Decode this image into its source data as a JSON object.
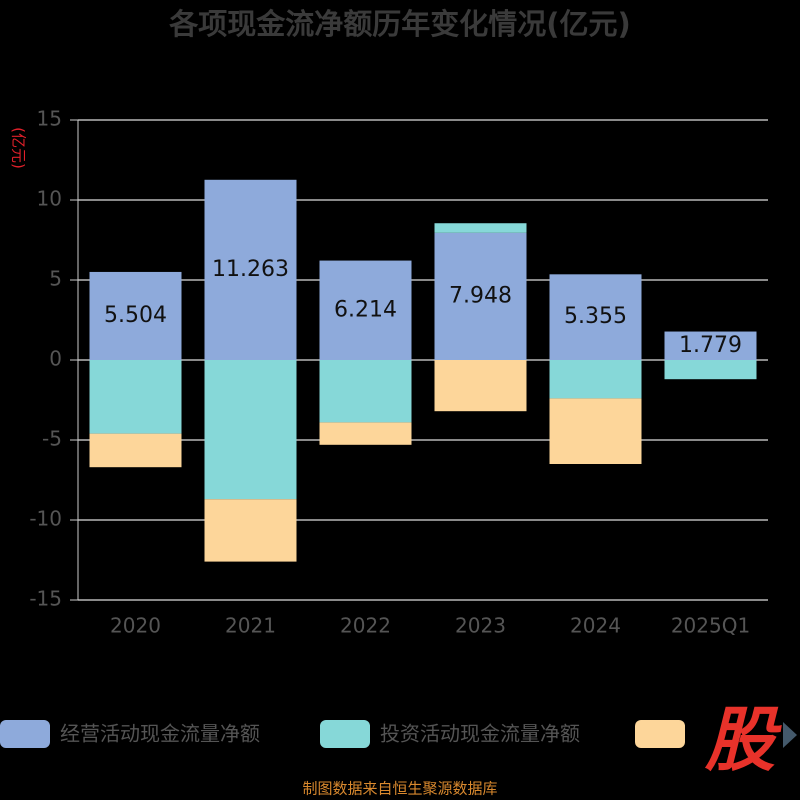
{
  "chart_data": {
    "type": "bar",
    "stacked": true,
    "title": "各项现金流净额历年变化情况(亿元)",
    "y_label": "(亿元)",
    "categories": [
      "2020",
      "2021",
      "2022",
      "2023",
      "2024",
      "2025Q1"
    ],
    "series": [
      {
        "name": "经营活动现金流量净额",
        "color": "#8eaadb",
        "values": [
          5.504,
          11.263,
          6.214,
          7.948,
          5.355,
          1.779
        ],
        "show_labels": true
      },
      {
        "name": "投资活动现金流量净额",
        "color": "#86d8d8",
        "values": [
          -4.6,
          -8.7,
          -3.9,
          0.6,
          -2.4,
          -1.2
        ]
      },
      {
        "color": "#fdd69a",
        "values": [
          -2.1,
          -3.9,
          -1.4,
          -3.2,
          -4.1,
          null
        ]
      }
    ],
    "ylim": [
      -15,
      15
    ],
    "yticks": [
      -15,
      -10,
      -5,
      0,
      5,
      10,
      15
    ],
    "grid": true
  },
  "source": "制图数据来自恒生聚源数据库",
  "logo": "股"
}
